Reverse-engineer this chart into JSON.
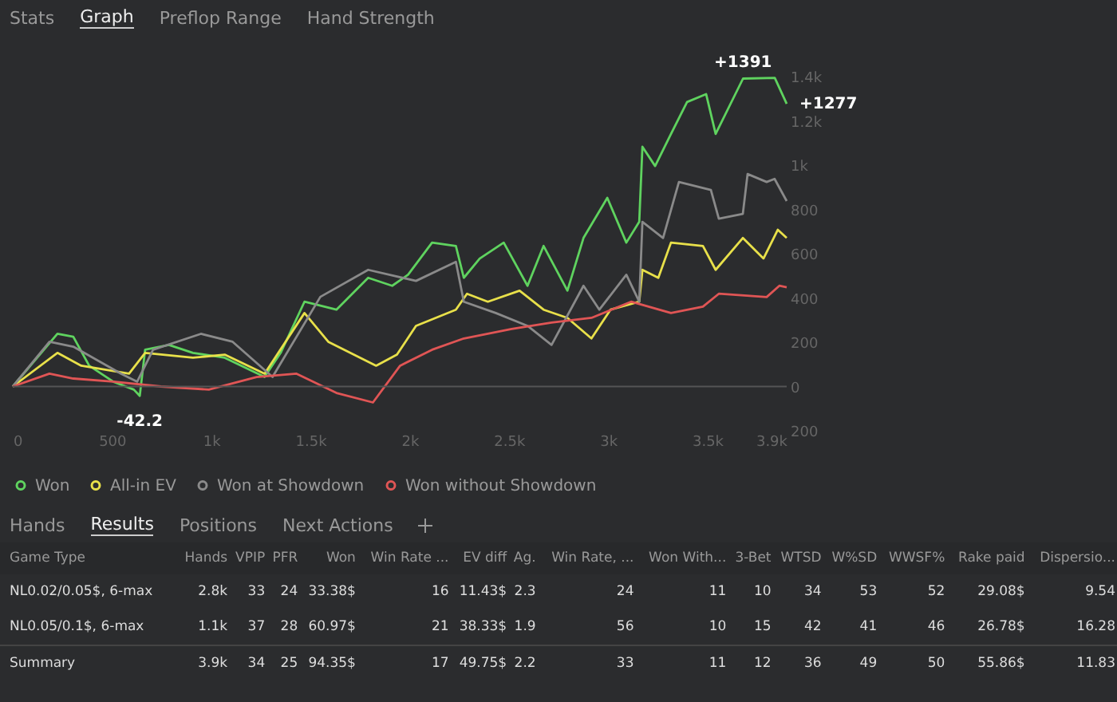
{
  "chart_data": [
    {
      "type": "line",
      "annotations": [
        "Stats",
        "Graph",
        "Preflop Range",
        "Hand Strength",
        {
          "text": "-42.2",
          "x": 640,
          "y": -42.2
        },
        {
          "text": "+1391",
          "x": 3680,
          "y": 1391
        },
        {
          "text": "+1277",
          "x": 3900,
          "y": 1277
        }
      ],
      "xlim": [
        0,
        3900
      ],
      "xticks": [
        0,
        500,
        {
          "value": 1000,
          "label": "1k"
        },
        {
          "value": 1500,
          "label": "1.5k"
        },
        {
          "value": 2000,
          "label": "2k"
        },
        {
          "value": 2500,
          "label": "2.5k"
        },
        {
          "value": 3000,
          "label": "3k"
        },
        {
          "value": 3500,
          "label": "3.5k"
        },
        {
          "value": 3900,
          "label": "3.9k"
        }
      ],
      "ylim": [
        -200,
        1400
      ],
      "yticks": [
        {
          "value": -200,
          "label": "200"
        },
        0,
        200,
        400,
        600,
        800,
        {
          "value": 1000,
          "label": "1k"
        },
        {
          "value": 1200,
          "label": "1.2k"
        },
        {
          "value": 1400,
          "label": "1.4k"
        }
      ],
      "legend": "bottom",
      "grid": false,
      "ref_lines": [
        {
          "axis": "y",
          "value": 0,
          "color": "#555555"
        }
      ],
      "series": [
        {
          "name": "Won",
          "color": "#5fd35f",
          "x": [
            0,
            225,
            305,
            385,
            506,
            610,
            640,
            667,
            787,
            908,
            1068,
            1269,
            1350,
            1470,
            1631,
            1791,
            1912,
            1992,
            2113,
            2233,
            2273,
            2353,
            2474,
            2594,
            2675,
            2795,
            2876,
            2996,
            3092,
            3157,
            3173,
            3237,
            3317,
            3398,
            3494,
            3542,
            3680,
            3840,
            3900
          ],
          "values": [
            0,
            238,
            225,
            94,
            22,
            -14,
            -42.2,
            166,
            188,
            152,
            130,
            43,
            152,
            383,
            347,
            491,
            455,
            505,
            650,
            635,
            491,
            578,
            650,
            455,
            635,
            433,
            671,
            852,
            650,
            744,
            1083,
            996,
            1141,
            1285,
            1321,
            1141,
            1391,
            1394,
            1277
          ]
        },
        {
          "name": "All-in EV",
          "color": "#e8e04a",
          "x": [
            0,
            225,
            345,
            586,
            667,
            908,
            1068,
            1269,
            1470,
            1590,
            1831,
            1936,
            2032,
            2233,
            2289,
            2394,
            2554,
            2675,
            2795,
            2916,
            3012,
            3157,
            3173,
            3253,
            3317,
            3478,
            3542,
            3679,
            3783,
            3855,
            3900
          ],
          "values": [
            0,
            152,
            94,
            58,
            152,
            130,
            144,
            58,
            332,
            202,
            94,
            144,
            274,
            347,
            419,
            383,
            433,
            347,
            310,
            217,
            347,
            383,
            527,
            491,
            650,
            635,
            527,
            671,
            578,
            708,
            671
          ]
        },
        {
          "name": "Won at Showdown",
          "color": "#8a8a8a",
          "x": [
            0,
            185,
            305,
            546,
            627,
            707,
            948,
            1108,
            1309,
            1550,
            1791,
            2032,
            2233,
            2273,
            2434,
            2594,
            2715,
            2876,
            2956,
            3092,
            3157,
            3173,
            3277,
            3357,
            3518,
            3558,
            3679,
            3703,
            3799,
            3839,
            3900
          ],
          "values": [
            0,
            202,
            180,
            58,
            22,
            166,
            238,
            202,
            43,
            405,
            527,
            477,
            563,
            383,
            332,
            274,
            188,
            455,
            347,
            505,
            383,
            744,
            671,
            924,
            888,
            758,
            780,
            960,
            924,
            938,
            838
          ]
        },
        {
          "name": "Won without Showdown",
          "color": "#e05555",
          "x": [
            0,
            185,
            305,
            506,
            747,
            988,
            1229,
            1430,
            1631,
            1815,
            1952,
            2113,
            2273,
            2514,
            2715,
            2916,
            3116,
            3317,
            3478,
            3558,
            3799,
            3863,
            3900
          ],
          "values": [
            0,
            58,
            36,
            22,
            0,
            -14,
            43,
            58,
            -29,
            -72,
            94,
            166,
            217,
            260,
            289,
            310,
            383,
            332,
            361,
            419,
            404,
            455,
            448
          ]
        }
      ]
    },
    {
      "type": "other",
      "annotations": [
        "Hands",
        "Results",
        "Positions",
        "Next Actions"
      ],
      "categories": [
        "Game Type",
        "Hands",
        "VPIP",
        "PFR",
        "Won",
        "Win Rate ...",
        "EV diff",
        "Ag.",
        "Win Rate, ...",
        "Won With...",
        "3-Bet",
        "WTSD",
        "W%SD",
        "WWSF%",
        "Rake paid",
        "Dispersio..."
      ],
      "cell_labels": [
        [
          "NL0.02/0.05$, 6-max",
          "2.8k",
          "33",
          "24",
          "33.38$",
          "16",
          "11.43$",
          "2.3",
          "24",
          "11",
          "10",
          "34",
          "53",
          "52",
          "29.08$",
          "9.54"
        ],
        [
          "NL0.05/0.1$, 6-max",
          "1.1k",
          "37",
          "28",
          "60.97$",
          "21",
          "38.33$",
          "1.9",
          "56",
          "10",
          "15",
          "42",
          "41",
          "46",
          "26.78$",
          "16.28"
        ],
        [
          "Summary",
          "3.9k",
          "34",
          "25",
          "94.35$",
          "17",
          "49.75$",
          "2.2",
          "33",
          "11",
          "12",
          "36",
          "49",
          "50",
          "55.86$",
          "11.83"
        ]
      ]
    }
  ]
}
